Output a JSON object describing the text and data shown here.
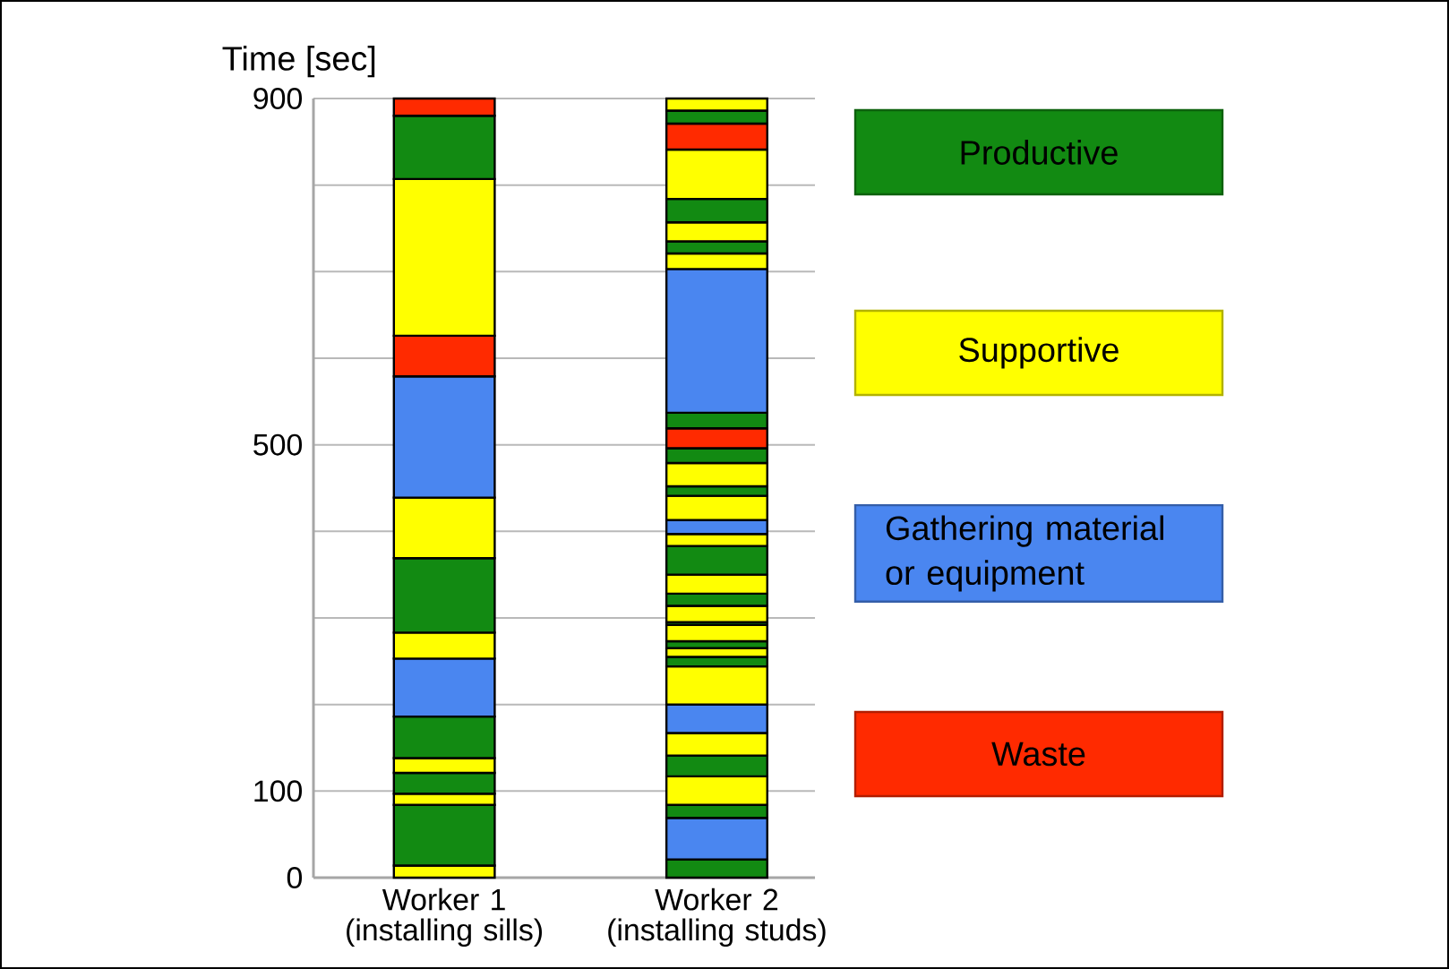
{
  "chart_data": {
    "type": "bar",
    "stacked": true,
    "ylabel": "Time [sec]",
    "categories": [
      "Worker 1 (installing sills)",
      "Worker 2 (installing studs)"
    ],
    "ylim": [
      0,
      900
    ],
    "yticks": [
      0,
      {
        "value": 100,
        "label": "100"
      },
      {
        "value": 200,
        "label": null
      },
      {
        "value": 300,
        "label": null
      },
      {
        "value": 400,
        "label": null
      },
      500,
      {
        "value": 600,
        "label": null
      },
      {
        "value": 700,
        "label": null
      },
      {
        "value": 800,
        "label": null
      },
      900
    ],
    "grid": "y",
    "legend": "right",
    "series": [
      {
        "name": "Productive",
        "color": "#128a12",
        "values": [
          null,
          21
        ]
      },
      {
        "name": "Supportive",
        "color": "#ffff00",
        "values": [
          14,
          null
        ]
      },
      {
        "name": "Gathering material or equipment",
        "color": "#4a86f0",
        "values": [
          null,
          48
        ]
      },
      {
        "color": "#128a12",
        "values": [
          70,
          null
        ]
      },
      {
        "color": "#ffff00",
        "values": [
          13,
          null
        ]
      },
      {
        "color": "#128a12",
        "values": [
          24,
          null
        ]
      },
      {
        "color": "#ffff00",
        "values": [
          17,
          null
        ]
      },
      {
        "color": "#128a12",
        "values": [
          48,
          null
        ]
      },
      {
        "color": "#4a86f0",
        "values": [
          67,
          null
        ]
      },
      {
        "color": "#ffff00",
        "values": [
          30,
          null
        ]
      },
      {
        "color": "#128a12",
        "values": [
          86,
          null
        ]
      },
      {
        "color": "#ffff00",
        "values": [
          70,
          null
        ]
      },
      {
        "color": "#4a86f0",
        "values": [
          140,
          null
        ]
      },
      {
        "name": "Waste",
        "color": "#ff2a00",
        "values": [
          47,
          null
        ]
      },
      {
        "color": "#ffff00",
        "values": [
          181,
          null
        ]
      },
      {
        "color": "#128a12",
        "values": [
          73,
          null
        ]
      },
      {
        "color": "#ff2a00",
        "values": [
          20,
          null
        ]
      },
      {
        "color": "#128a12",
        "values": [
          null,
          15
        ]
      },
      {
        "color": "#ffff00",
        "values": [
          null,
          33
        ]
      },
      {
        "color": "#128a12",
        "values": [
          null,
          24
        ]
      },
      {
        "color": "#ffff00",
        "values": [
          null,
          26
        ]
      },
      {
        "color": "#4a86f0",
        "values": [
          null,
          33
        ]
      },
      {
        "color": "#ffff00",
        "values": [
          null,
          44
        ]
      },
      {
        "color": "#128a12",
        "values": [
          null,
          11
        ]
      },
      {
        "color": "#ffff00",
        "values": [
          null,
          10
        ]
      },
      {
        "color": "#128a12",
        "values": [
          null,
          8
        ]
      },
      {
        "color": "#ffff00",
        "values": [
          null,
          19
        ]
      },
      {
        "color": "#128a12",
        "values": [
          null,
          3
        ]
      },
      {
        "color": "#ffff00",
        "values": [
          null,
          19
        ]
      },
      {
        "color": "#128a12",
        "values": [
          null,
          14
        ]
      },
      {
        "color": "#ffff00",
        "values": [
          null,
          22
        ]
      },
      {
        "color": "#128a12",
        "values": [
          null,
          33
        ]
      },
      {
        "color": "#ffff00",
        "values": [
          null,
          14
        ]
      },
      {
        "color": "#4a86f0",
        "values": [
          null,
          16
        ]
      },
      {
        "color": "#ffff00",
        "values": [
          null,
          28
        ]
      },
      {
        "color": "#128a12",
        "values": [
          null,
          11
        ]
      },
      {
        "color": "#ffff00",
        "values": [
          null,
          27
        ]
      },
      {
        "color": "#128a12",
        "values": [
          null,
          17
        ]
      },
      {
        "color": "#ff2a00",
        "values": [
          null,
          23
        ]
      },
      {
        "color": "#128a12",
        "values": [
          null,
          18
        ]
      },
      {
        "color": "#4a86f0",
        "values": [
          null,
          166
        ]
      },
      {
        "color": "#ffff00",
        "values": [
          null,
          18
        ]
      },
      {
        "color": "#128a12",
        "values": [
          null,
          14
        ]
      },
      {
        "color": "#ffff00",
        "values": [
          null,
          22
        ]
      },
      {
        "color": "#128a12",
        "values": [
          null,
          27
        ]
      },
      {
        "color": "#ffff00",
        "values": [
          null,
          57
        ]
      },
      {
        "color": "#ff2a00",
        "values": [
          null,
          30
        ]
      },
      {
        "color": "#128a12",
        "values": [
          null,
          15
        ]
      },
      {
        "color": "#ffff00",
        "values": [
          null,
          14
        ]
      }
    ]
  }
}
